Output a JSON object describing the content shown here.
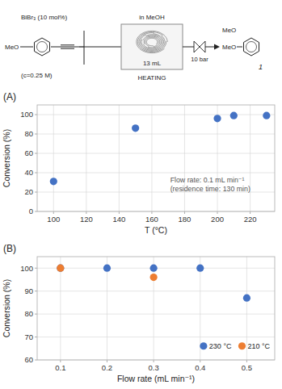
{
  "chart_data": [
    {
      "type": "diagram",
      "annotations": [
        "BiBr₃ (10 mol%)",
        "MeO",
        "(c=0.25 M)",
        "in MeOH",
        "13 mL",
        "HEATING",
        "10 bar",
        "MeO",
        "MeO",
        "1"
      ]
    },
    {
      "type": "scatter",
      "title": "(A)",
      "xlabel": "T (°C)",
      "ylabel": "Conversion (%)",
      "x": [
        100,
        150,
        200,
        210,
        230
      ],
      "values": [
        31,
        86,
        96,
        99,
        99
      ],
      "color": "#4472C4",
      "xlim": [
        90,
        235
      ],
      "ylim": [
        0,
        110
      ],
      "xticks": [
        100,
        120,
        140,
        160,
        180,
        200,
        220
      ],
      "yticks": [
        0,
        20,
        40,
        60,
        80,
        100
      ],
      "grid": true,
      "annotations": [
        "Flow rate: 0.1 mL min⁻¹",
        "(residence time: 130 min)"
      ]
    },
    {
      "type": "scatter",
      "title": "(B)",
      "xlabel": "Flow rate (mL min⁻¹)",
      "ylabel": "Conversion (%)",
      "series": [
        {
          "name": "230 °C",
          "color": "#4472C4",
          "x": [
            0.1,
            0.2,
            0.3,
            0.4,
            0.5
          ],
          "values": [
            100,
            100,
            100,
            100,
            87
          ]
        },
        {
          "name": "210 °C",
          "color": "#ED7D31",
          "x": [
            0.1,
            0.3
          ],
          "values": [
            100,
            96
          ]
        }
      ],
      "xlim": [
        0.05,
        0.56
      ],
      "ylim": [
        60,
        105
      ],
      "xticks": [
        0.1,
        0.2,
        0.3,
        0.4,
        0.5
      ],
      "yticks": [
        60,
        70,
        80,
        90,
        100
      ],
      "grid": true,
      "legend": "lower right"
    }
  ]
}
